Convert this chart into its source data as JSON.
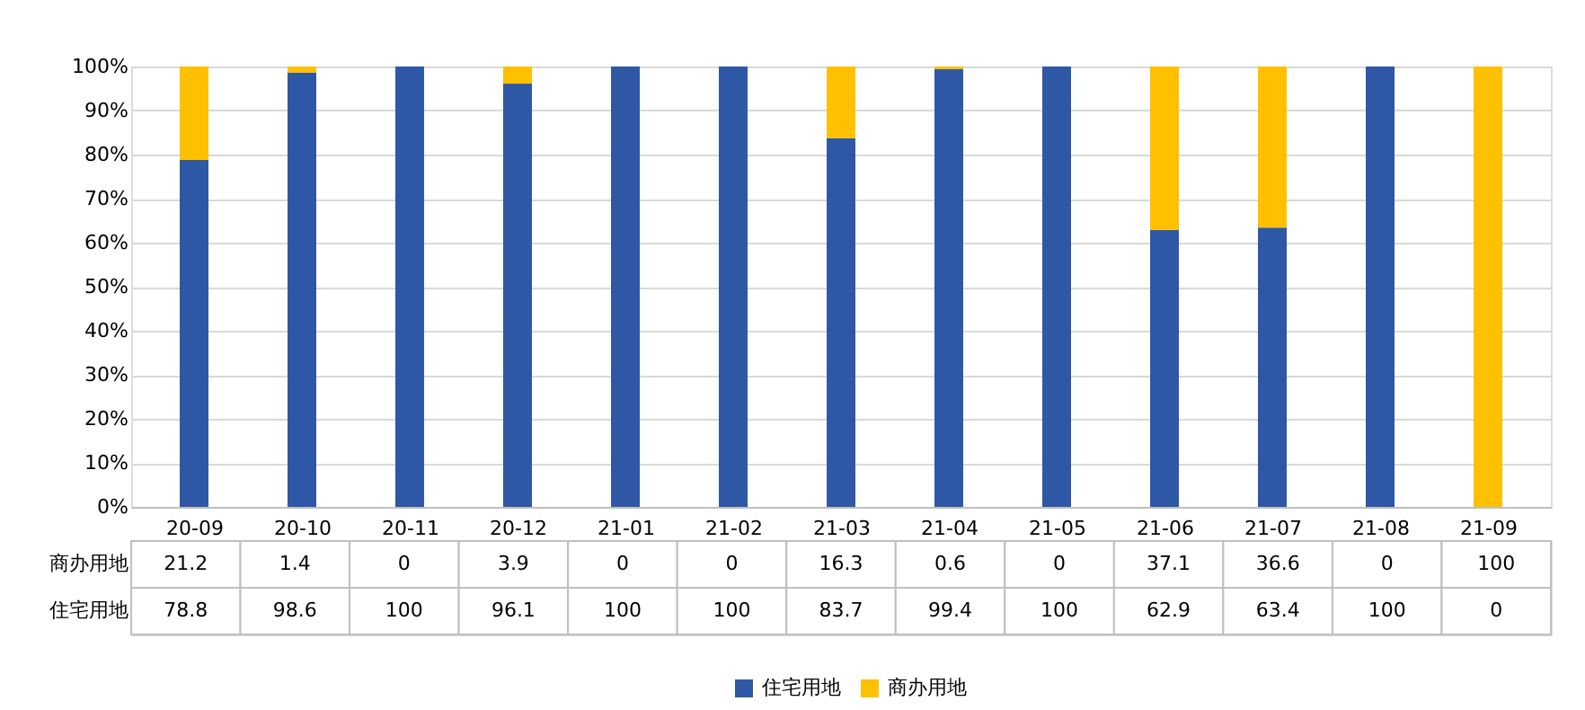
{
  "chart_data": {
    "type": "bar",
    "stacked": true,
    "data_labels": true,
    "legend": "bottom",
    "grid": "y",
    "categories": [
      "20-09",
      "20-10",
      "20-11",
      "20-12",
      "21-01",
      "21-02",
      "21-03",
      "21-04",
      "21-05",
      "21-06",
      "21-07",
      "21-08",
      "21-09"
    ],
    "series": [
      {
        "name": "住宅用地",
        "color": "#2e58a6",
        "values": [
          78.8,
          98.6,
          100,
          96.1,
          100,
          100,
          83.7,
          99.4,
          100,
          62.9,
          63.4,
          100,
          0
        ]
      },
      {
        "name": "商办用地",
        "color": "#ffc000",
        "values": [
          21.2,
          1.4,
          0,
          3.9,
          0,
          0,
          16.3,
          0.6,
          0,
          37.1,
          36.6,
          0,
          100
        ]
      }
    ],
    "ylim": [
      0,
      100
    ],
    "yticks": [
      {
        "value": 0,
        "label": "0%"
      },
      {
        "value": 10,
        "label": "10%"
      },
      {
        "value": 20,
        "label": "20%"
      },
      {
        "value": 30,
        "label": "30%"
      },
      {
        "value": 40,
        "label": "40%"
      },
      {
        "value": 50,
        "label": "50%"
      },
      {
        "value": 60,
        "label": "60%"
      },
      {
        "value": 70,
        "label": "70%"
      },
      {
        "value": 80,
        "label": "80%"
      },
      {
        "value": 90,
        "label": "90%"
      },
      {
        "value": 100,
        "label": "100%"
      }
    ]
  }
}
